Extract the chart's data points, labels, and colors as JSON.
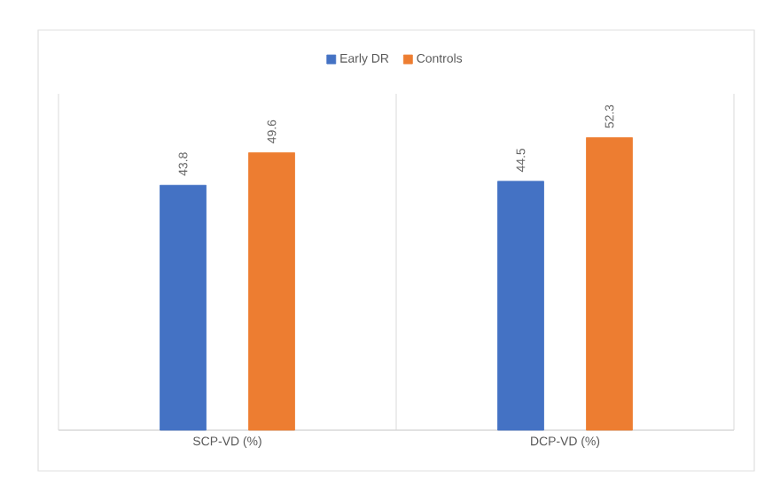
{
  "chart_data": {
    "type": "bar",
    "categories": [
      "SCP-VD (%)",
      "DCP-VD (%)"
    ],
    "series": [
      {
        "name": "Early DR",
        "color": "#4472c4",
        "values": [
          43.8,
          44.5
        ]
      },
      {
        "name": "Controls",
        "color": "#ed7d31",
        "values": [
          49.6,
          52.3
        ]
      }
    ],
    "data_labels": true,
    "legend": "top"
  }
}
